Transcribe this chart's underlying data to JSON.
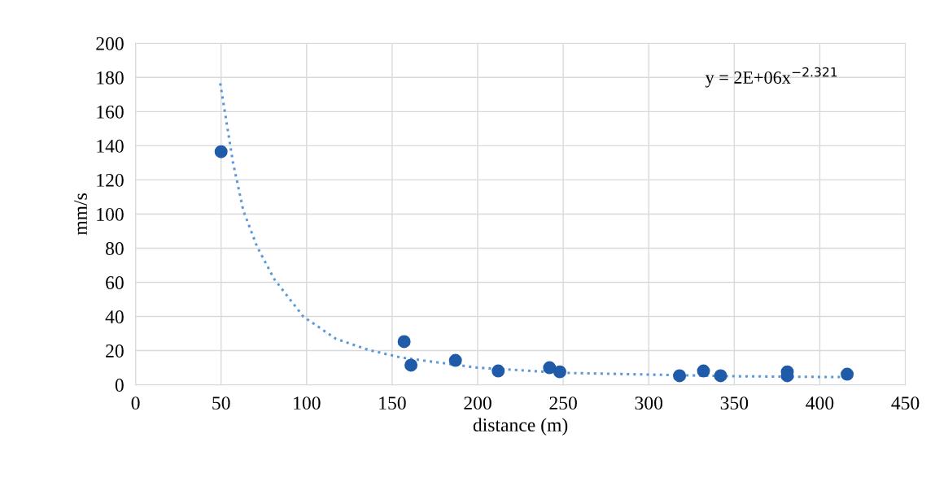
{
  "chart_data": {
    "type": "scatter",
    "xlabel": "distance (m)",
    "ylabel": "mm/s",
    "xlim": [
      0,
      450
    ],
    "xticks": [
      0,
      50,
      100,
      150,
      200,
      250,
      300,
      350,
      400,
      450
    ],
    "ylim": [
      0,
      200
    ],
    "yticks": [
      0,
      20,
      40,
      60,
      80,
      100,
      120,
      140,
      160,
      180,
      200
    ],
    "grid": true,
    "marker": "circle",
    "series": [
      {
        "color": "#1f5ba8",
        "x": [
          50,
          157,
          161,
          187,
          212,
          242,
          248,
          318,
          332,
          342,
          381,
          381,
          416
        ],
        "values": [
          136.5,
          25.3,
          11.5,
          14.3,
          8.1,
          10,
          7.6,
          5.3,
          8.1,
          5.3,
          7.6,
          5.3,
          6.2
        ]
      },
      {
        "type": "line",
        "color": "#5b9bd5",
        "line_style": "dotted",
        "marker": "none",
        "x": [
          49.5,
          57,
          63,
          71,
          81,
          98,
          117,
          136,
          155,
          200,
          250,
          300,
          350,
          415
        ],
        "values": [
          176.6,
          130,
          102,
          81,
          62,
          40,
          27,
          20.5,
          16,
          10,
          7,
          6,
          5,
          4.5
        ]
      }
    ],
    "annotations": [
      "y = 2E+06x$^{−2.321}$"
    ]
  }
}
